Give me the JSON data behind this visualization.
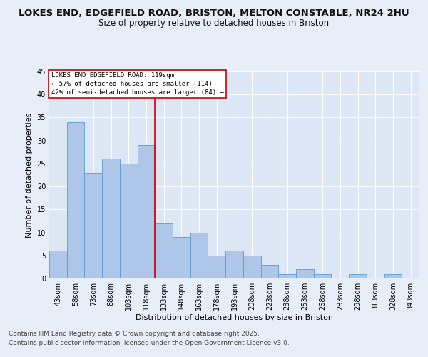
{
  "title1": "LOKES END, EDGEFIELD ROAD, BRISTON, MELTON CONSTABLE, NR24 2HU",
  "title2": "Size of property relative to detached houses in Briston",
  "xlabel": "Distribution of detached houses by size in Briston",
  "ylabel": "Number of detached properties",
  "categories": [
    "43sqm",
    "58sqm",
    "73sqm",
    "88sqm",
    "103sqm",
    "118sqm",
    "133sqm",
    "148sqm",
    "163sqm",
    "178sqm",
    "193sqm",
    "208sqm",
    "223sqm",
    "238sqm",
    "253sqm",
    "268sqm",
    "283sqm",
    "298sqm",
    "313sqm",
    "328sqm",
    "343sqm"
  ],
  "values": [
    6,
    34,
    23,
    26,
    25,
    29,
    12,
    9,
    10,
    5,
    6,
    5,
    3,
    1,
    2,
    1,
    0,
    1,
    0,
    1,
    0
  ],
  "bar_color": "#aec6e8",
  "bar_edge_color": "#5b9bd5",
  "background_color": "#e8eef7",
  "plot_bg_color": "#dce6f5",
  "grid_color": "#ffffff",
  "marker_line_index": 5,
  "marker_line_color": "#cc0000",
  "annotation_box_text": "LOKES END EDGEFIELD ROAD: 119sqm\n← 57% of detached houses are smaller (114)\n42% of semi-detached houses are larger (84) →",
  "annotation_box_color": "#cc0000",
  "ylim": [
    0,
    45
  ],
  "yticks": [
    0,
    5,
    10,
    15,
    20,
    25,
    30,
    35,
    40,
    45
  ],
  "footer_line1": "Contains HM Land Registry data © Crown copyright and database right 2025.",
  "footer_line2": "Contains public sector information licensed under the Open Government Licence v3.0.",
  "title1_fontsize": 9.5,
  "title2_fontsize": 8.5,
  "tick_fontsize": 7,
  "ylabel_fontsize": 8,
  "xlabel_fontsize": 8,
  "footer_fontsize": 6.5,
  "ann_fontsize": 6.5
}
